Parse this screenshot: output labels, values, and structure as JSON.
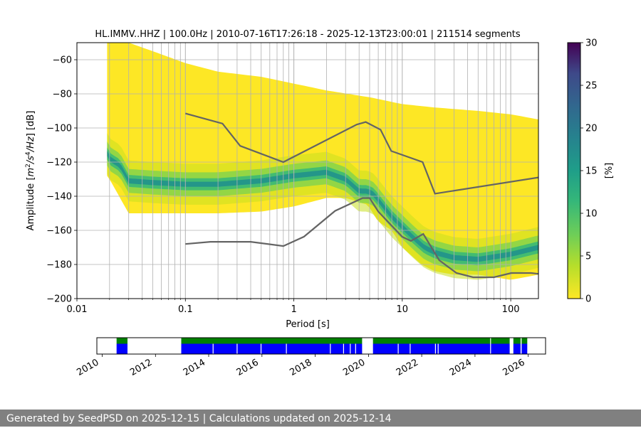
{
  "chart_data": [
    {
      "type": "heatmap",
      "title": "HL.IMMV..HHZ | 100.0Hz | 2010-07-16T17:26:18 - 2025-12-13T23:00:01 | 211514 segments",
      "xlabel": "Period [s]",
      "ylabel_prefix": "Amplitude [",
      "ylabel_math": [
        "m",
        "2",
        "/s",
        "4",
        "/Hz",
        "] [dB]"
      ],
      "x_scale": "log",
      "xlim": [
        0.01,
        180
      ],
      "ylim": [
        -200,
        -50
      ],
      "x_ticks": [
        0.01,
        0.1,
        1,
        10,
        100
      ],
      "x_tick_labels": [
        "0.01",
        "0.1",
        "1",
        "10",
        "100"
      ],
      "y_ticks": [
        -200,
        -180,
        -160,
        -140,
        -120,
        -100,
        -80,
        -60
      ],
      "y_tick_labels": [
        "−200",
        "−180",
        "−160",
        "−140",
        "−120",
        "−100",
        "−80",
        "−60"
      ],
      "grid": true,
      "colorbar": {
        "label": "[%]",
        "range": [
          0,
          30
        ],
        "ticks": [
          0,
          5,
          10,
          15,
          20,
          25,
          30
        ],
        "tick_labels": [
          "0",
          "5",
          "10",
          "15",
          "20",
          "25",
          "30"
        ],
        "colormap": "viridis_r"
      },
      "psd_mode_curve": {
        "x": [
          0.019,
          0.02,
          0.025,
          0.03,
          0.05,
          0.1,
          0.2,
          0.5,
          1,
          2,
          3,
          4,
          4.8,
          5.5,
          6.5,
          8,
          10,
          13,
          16,
          20,
          30,
          50,
          100,
          180
        ],
        "y": [
          -115,
          -118,
          -122,
          -131,
          -132,
          -133,
          -133,
          -131,
          -128,
          -126,
          -130,
          -137,
          -137,
          -139,
          -145,
          -152,
          -158,
          -165,
          -170,
          -173,
          -176,
          -177,
          -174,
          -170
        ]
      },
      "psd_yellow_upper": {
        "x": [
          0.019,
          0.02,
          0.03,
          0.05,
          0.1,
          0.2,
          0.5,
          1,
          2,
          5,
          10,
          20,
          50,
          100,
          180
        ],
        "y": [
          -50,
          -50,
          -50,
          -55,
          -62,
          -67,
          -70,
          -74,
          -78,
          -82,
          -86,
          -88,
          -90,
          -92,
          -95
        ]
      },
      "psd_yellow_lower": {
        "x": [
          0.019,
          0.02,
          0.03,
          0.05,
          0.1,
          0.2,
          0.5,
          1,
          2,
          3,
          4.8,
          6,
          8,
          10,
          15,
          20,
          30,
          50,
          100,
          180
        ],
        "y": [
          -128,
          -130,
          -150,
          -150,
          -150,
          -150,
          -149,
          -146,
          -141,
          -141,
          -145,
          -155,
          -160,
          -170,
          -180,
          -184,
          -186,
          -186,
          -189,
          -186
        ]
      },
      "nhnm": {
        "x": [
          0.1,
          0.22,
          0.32,
          0.8,
          3.8,
          4.6,
          6.3,
          7.9,
          15.4,
          20,
          180
        ],
        "y": [
          -91.5,
          -97.4,
          -110.5,
          -120,
          -98,
          -96.5,
          -101,
          -113.5,
          -120,
          -138.5,
          -129
        ]
      },
      "nlnm": {
        "x": [
          0.1,
          0.17,
          0.4,
          0.8,
          1.24,
          2.4,
          4.3,
          5,
          6,
          10,
          12,
          15.6,
          21.9,
          31.6,
          45,
          70,
          101,
          154,
          180
        ],
        "y": [
          -168,
          -166.7,
          -166.7,
          -169.2,
          -163.7,
          -148.6,
          -141.1,
          -141.1,
          -149,
          -163.8,
          -166.2,
          -162.1,
          -177.5,
          -185,
          -187.5,
          -187.5,
          -185,
          -185,
          -185.5
        ]
      }
    },
    {
      "type": "area",
      "x_tick_labels": [
        "2010",
        "2012",
        "2014",
        "2016",
        "2018",
        "2020",
        "2022",
        "2024",
        "2026"
      ],
      "x_ticks": [
        2010,
        2012,
        2014,
        2016,
        2018,
        2020,
        2022,
        2024,
        2026
      ],
      "xlim": [
        2009.8,
        2026.65
      ],
      "series": [
        {
          "color": "#008000",
          "intervals": [
            [
              2010.54,
              2010.95
            ],
            [
              2012.97,
              2019.76
            ],
            [
              2020.17,
              2024.57
            ],
            [
              2024.6,
              2025.3
            ],
            [
              2025.44,
              2025.71
            ],
            [
              2025.75,
              2025.96
            ]
          ]
        },
        {
          "color": "#0000ff",
          "intervals": [
            [
              2010.54,
              2010.95
            ],
            [
              2012.97,
              2019.76
            ],
            [
              2020.17,
              2024.57
            ],
            [
              2024.6,
              2025.3
            ],
            [
              2025.44,
              2025.71
            ],
            [
              2025.75,
              2025.96
            ]
          ]
        }
      ],
      "gaps": [
        2014.15,
        2015.05,
        2015.95,
        2016.9,
        2018.55,
        2019.05,
        2019.3,
        2019.5,
        2021.1,
        2021.55,
        2022.5,
        2022.6
      ]
    }
  ],
  "footer": {
    "text": "Generated by SeedPSD on 2025-12-15 | Calculations updated on 2025-12-14"
  },
  "colors": {
    "curve": "#646464",
    "grid": "#b0b0b0",
    "footer_bg": "#808080"
  }
}
